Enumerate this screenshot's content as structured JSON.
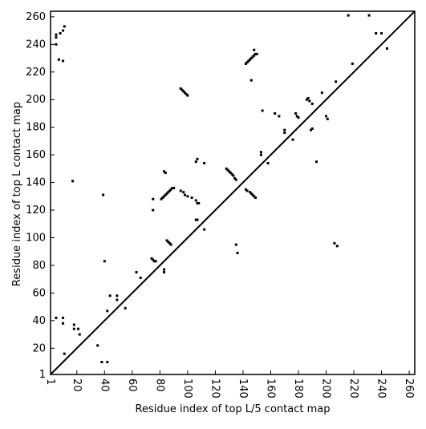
{
  "chart_data": {
    "type": "scatter",
    "xlabel": "Residue index of top L/5 contact map",
    "ylabel": "Residue index of top L contact map",
    "xlim": [
      1,
      264
    ],
    "ylim": [
      1,
      264
    ],
    "xticks": [
      1,
      20,
      40,
      60,
      80,
      100,
      120,
      140,
      160,
      180,
      200,
      220,
      240,
      260
    ],
    "yticks": [
      1,
      20,
      40,
      60,
      80,
      100,
      120,
      140,
      160,
      180,
      200,
      220,
      240,
      260
    ],
    "diagonal": true,
    "color": "#000000",
    "x": [
      5,
      5,
      8,
      10,
      11,
      5,
      7,
      10,
      17,
      39,
      40,
      75,
      75,
      83,
      84,
      81,
      82,
      83,
      84,
      85,
      86,
      87,
      88,
      89,
      90,
      95,
      97,
      98,
      100,
      103,
      106,
      107,
      112,
      95,
      96,
      97,
      98,
      99,
      100,
      106,
      107,
      108,
      106,
      107,
      112,
      142,
      143,
      144,
      145,
      146,
      147,
      148,
      149,
      150,
      148,
      146,
      154,
      153,
      153,
      158,
      163,
      166,
      170,
      170,
      176,
      178,
      179,
      180,
      186,
      187,
      188,
      190,
      189,
      190,
      193,
      197,
      200,
      201,
      207,
      219,
      216,
      231,
      236,
      240,
      244,
      5,
      10,
      10,
      18,
      18,
      21,
      22,
      35,
      11,
      38,
      42,
      42,
      44,
      49,
      49,
      55,
      63,
      66,
      74,
      75,
      76,
      77,
      83,
      83,
      85,
      86,
      87,
      88,
      128,
      129,
      130,
      131,
      132,
      133,
      134,
      135,
      142,
      143,
      145,
      146,
      147,
      148,
      149,
      135,
      136,
      206,
      208
    ],
    "y": [
      247,
      245,
      248,
      250,
      253,
      240,
      229,
      228,
      141,
      131,
      83,
      128,
      120,
      148,
      147,
      128,
      129,
      130,
      131,
      132,
      133,
      134,
      135,
      136,
      136,
      134,
      133,
      131,
      130,
      129,
      155,
      157,
      154,
      208,
      207,
      206,
      205,
      204,
      203,
      127,
      125,
      125,
      113,
      113,
      106,
      226,
      227,
      228,
      229,
      230,
      231,
      232,
      233,
      233,
      236,
      214,
      192,
      160,
      162,
      154,
      190,
      188,
      178,
      176,
      171,
      190,
      188,
      187,
      200,
      201,
      199,
      197,
      178,
      179,
      155,
      205,
      188,
      186,
      213,
      226,
      261,
      261,
      248,
      248,
      237,
      42,
      42,
      38,
      37,
      34,
      34,
      30,
      22,
      16,
      10,
      10,
      47,
      58,
      58,
      55,
      49,
      75,
      71,
      85,
      84,
      83,
      83,
      77,
      75,
      98,
      97,
      96,
      95,
      150,
      149,
      148,
      147,
      146,
      145,
      143,
      142,
      135,
      134,
      133,
      132,
      131,
      130,
      129,
      95,
      89,
      96,
      94
    ]
  }
}
